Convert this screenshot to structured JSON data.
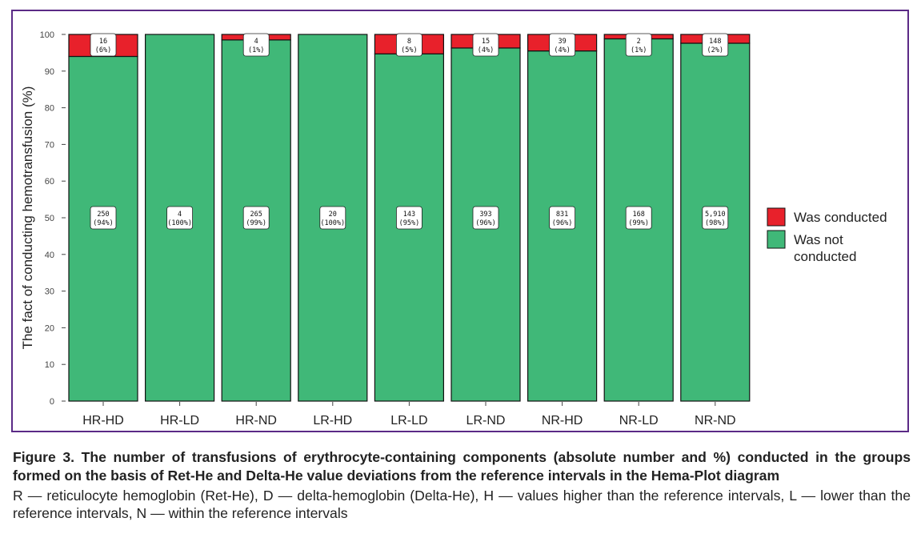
{
  "chart_data": {
    "type": "bar",
    "stacked": true,
    "categories": [
      "HR-HD",
      "HR-LD",
      "HR-ND",
      "LR-HD",
      "LR-LD",
      "LR-ND",
      "NR-HD",
      "NR-LD",
      "NR-ND"
    ],
    "ylabel": "The fact of conducting hemotransfusion (%)",
    "ylim": [
      0,
      100
    ],
    "yticks": [
      0,
      10,
      20,
      30,
      40,
      50,
      60,
      70,
      80,
      90,
      100
    ],
    "legend_position": "right",
    "series": [
      {
        "name": "Was not conducted",
        "color": "#40b878",
        "values": [
          94,
          100,
          98.5,
          100,
          94.7,
          96.3,
          95.5,
          98.8,
          97.6
        ],
        "counts": [
          "250",
          "4",
          "265",
          "20",
          "143",
          "393",
          "831",
          "168",
          "5,910"
        ],
        "percent_labels": [
          "(94%)",
          "(100%)",
          "(99%)",
          "(100%)",
          "(95%)",
          "(96%)",
          "(96%)",
          "(99%)",
          "(98%)"
        ]
      },
      {
        "name": "Was conducted",
        "color": "#e8212b",
        "values": [
          6,
          0,
          1.5,
          0,
          5.3,
          3.7,
          4.5,
          1.2,
          2.4
        ],
        "counts": [
          "16",
          "",
          "4",
          "",
          "8",
          "15",
          "39",
          "2",
          "148"
        ],
        "percent_labels": [
          "(6%)",
          "",
          "(1%)",
          "",
          "(5%)",
          "(4%)",
          "(4%)",
          "(1%)",
          "(2%)"
        ]
      }
    ]
  },
  "caption": {
    "title": "Figure 3. The number of transfusions of erythrocyte-containing components (absolute number and %) conducted in the groups formed on the basis of Ret-He and Delta-He value deviations from the reference intervals in the Hema-Plot diagram",
    "body": "R — reticulocyte hemoglobin (Ret-He), D — delta-hemoglobin (Delta-He), H — values higher than the reference intervals, L — lower than the reference intervals, N — within the reference intervals"
  }
}
